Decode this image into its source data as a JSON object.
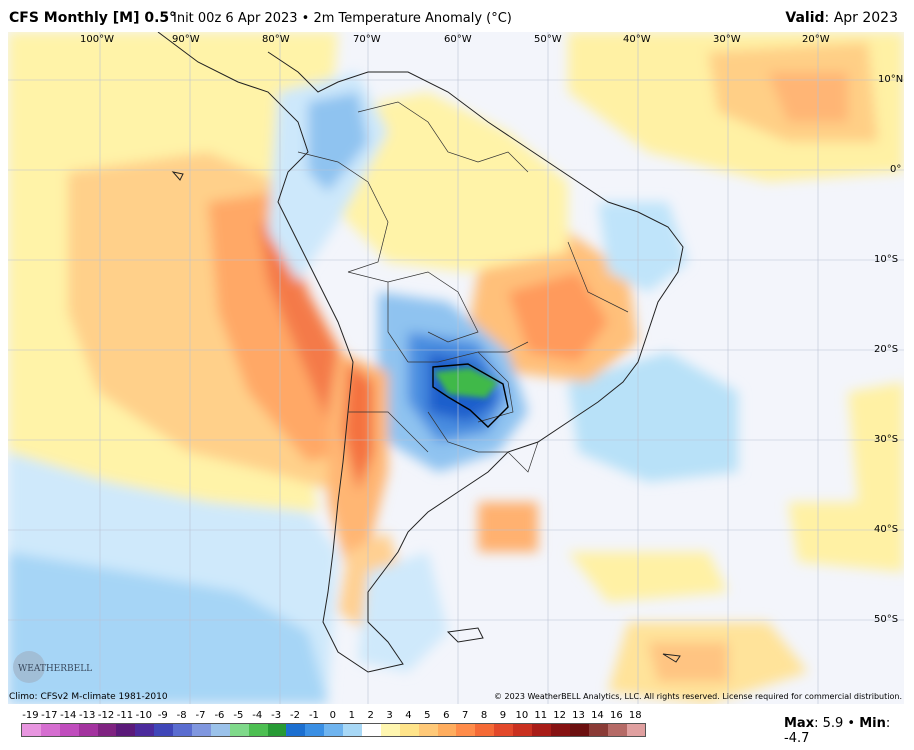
{
  "header": {
    "title": "CFS Monthly [M] 0.5°",
    "subtitle": "Init 00z 6 Apr 2023 • 2m Temperature Anomaly (°C)",
    "valid_label": "Valid",
    "valid_value": ": Apr 2023"
  },
  "map": {
    "lon_labels": [
      "100°W",
      "90°W",
      "80°W",
      "70°W",
      "60°W",
      "50°W",
      "40°W",
      "30°W",
      "20°W"
    ],
    "lat_labels": [
      "10°N",
      "0°",
      "10°S",
      "20°S",
      "30°S",
      "40°S",
      "50°S"
    ],
    "logo_text": "WEATHERBELL"
  },
  "footer": {
    "climo": "Climo: CFSv2 M-climate 1981-2010",
    "copyright": "© 2023 WeatherBELL Analytics, LLC. All rights reserved. License required for commercial distribution."
  },
  "colorbar": {
    "labels": [
      "-19",
      "-17",
      "-14",
      "-13",
      "-12",
      "-11",
      "-10",
      "-9",
      "-8",
      "-7",
      "-6",
      "-5",
      "-4",
      "-3",
      "-2",
      "-1",
      "0",
      "1",
      "2",
      "3",
      "4",
      "5",
      "6",
      "7",
      "8",
      "9",
      "10",
      "11",
      "12",
      "13",
      "14",
      "16",
      "18"
    ],
    "colors": [
      "#e896e0",
      "#d56ed0",
      "#c04dbd",
      "#a3339f",
      "#7f2381",
      "#5b1a7a",
      "#4b2a9c",
      "#3f46b8",
      "#5a6dd0",
      "#8097df",
      "#9bc2ea",
      "#7fd98a",
      "#4dbf52",
      "#279a35",
      "#1c6fd0",
      "#3a8fe4",
      "#6fb4ef",
      "#a8d8f6",
      "#ffffff",
      "#fff6b0",
      "#ffe48a",
      "#ffc978",
      "#ffad5e",
      "#ff8c4a",
      "#f56a36",
      "#e2482a",
      "#c9301f",
      "#a81c17",
      "#861212",
      "#6b0f0f",
      "#8a3b36",
      "#b56a66",
      "#e0a0a0"
    ],
    "max_label": "Max",
    "max_value": ": 5.9",
    "min_label": "Min",
    "min_value": ": -4.7",
    "separator": " • "
  }
}
